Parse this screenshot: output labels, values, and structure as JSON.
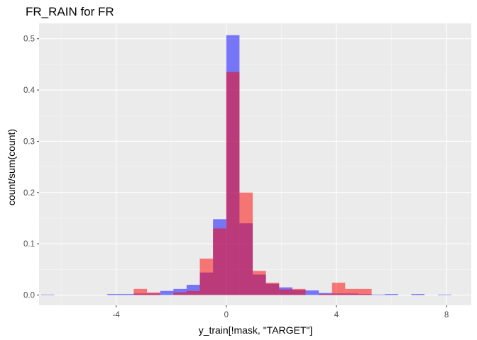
{
  "chart_data": {
    "type": "bar",
    "title": "FR_RAIN  for FR",
    "xlabel": "y_train[!mask, \"TARGET\"]",
    "ylabel": "count/sum(count)",
    "xlim": [
      -6.8,
      8.9
    ],
    "ylim": [
      -0.02,
      0.53
    ],
    "x_ticks": [
      -4,
      0,
      4,
      8
    ],
    "x_tick_labels": [
      "-4",
      "0",
      "4",
      "8"
    ],
    "y_ticks": [
      0.0,
      0.1,
      0.2,
      0.3,
      0.4,
      0.5
    ],
    "y_tick_labels": [
      "0.0",
      "0.1",
      "0.2",
      "0.3",
      "0.4",
      "0.5"
    ],
    "grid": true,
    "background": "#ebebeb",
    "bin_width": 0.4806,
    "series": [
      {
        "color": "#0000ff",
        "opacity": 0.5,
        "bins": [
          {
            "x": -6.49,
            "y": 0.001
          },
          {
            "x": -4.08,
            "y": 0.002
          },
          {
            "x": -3.6,
            "y": 0.002
          },
          {
            "x": -3.12,
            "y": 0.003
          },
          {
            "x": -2.64,
            "y": 0.003
          },
          {
            "x": -2.16,
            "y": 0.008
          },
          {
            "x": -1.68,
            "y": 0.012
          },
          {
            "x": -1.2,
            "y": 0.02
          },
          {
            "x": -0.72,
            "y": 0.044
          },
          {
            "x": -0.24,
            "y": 0.148
          },
          {
            "x": 0.24,
            "y": 0.507
          },
          {
            "x": 0.72,
            "y": 0.14
          },
          {
            "x": 1.2,
            "y": 0.04
          },
          {
            "x": 1.68,
            "y": 0.022
          },
          {
            "x": 2.16,
            "y": 0.015
          },
          {
            "x": 2.64,
            "y": 0.01
          },
          {
            "x": 3.12,
            "y": 0.009
          },
          {
            "x": 3.6,
            "y": 0.004
          },
          {
            "x": 4.08,
            "y": 0.003
          },
          {
            "x": 4.56,
            "y": 0.003
          },
          {
            "x": 5.04,
            "y": 0.002
          },
          {
            "x": 5.52,
            "y": 0.001
          },
          {
            "x": 6.0,
            "y": 0.002
          },
          {
            "x": 6.96,
            "y": 0.002
          },
          {
            "x": 7.93,
            "y": 0.001
          }
        ]
      },
      {
        "color": "#ff0000",
        "opacity": 0.5,
        "bins": [
          {
            "x": -3.12,
            "y": 0.012
          },
          {
            "x": -2.64,
            "y": 0.005
          },
          {
            "x": -1.68,
            "y": 0.005
          },
          {
            "x": -1.2,
            "y": 0.008
          },
          {
            "x": -0.72,
            "y": 0.071
          },
          {
            "x": -0.24,
            "y": 0.13
          },
          {
            "x": 0.24,
            "y": 0.435
          },
          {
            "x": 0.72,
            "y": 0.2
          },
          {
            "x": 1.2,
            "y": 0.047
          },
          {
            "x": 1.68,
            "y": 0.024
          },
          {
            "x": 2.16,
            "y": 0.011
          },
          {
            "x": 2.64,
            "y": 0.012
          },
          {
            "x": 3.6,
            "y": 0.002
          },
          {
            "x": 4.08,
            "y": 0.024
          },
          {
            "x": 4.56,
            "y": 0.012
          },
          {
            "x": 5.04,
            "y": 0.012
          }
        ]
      }
    ]
  }
}
